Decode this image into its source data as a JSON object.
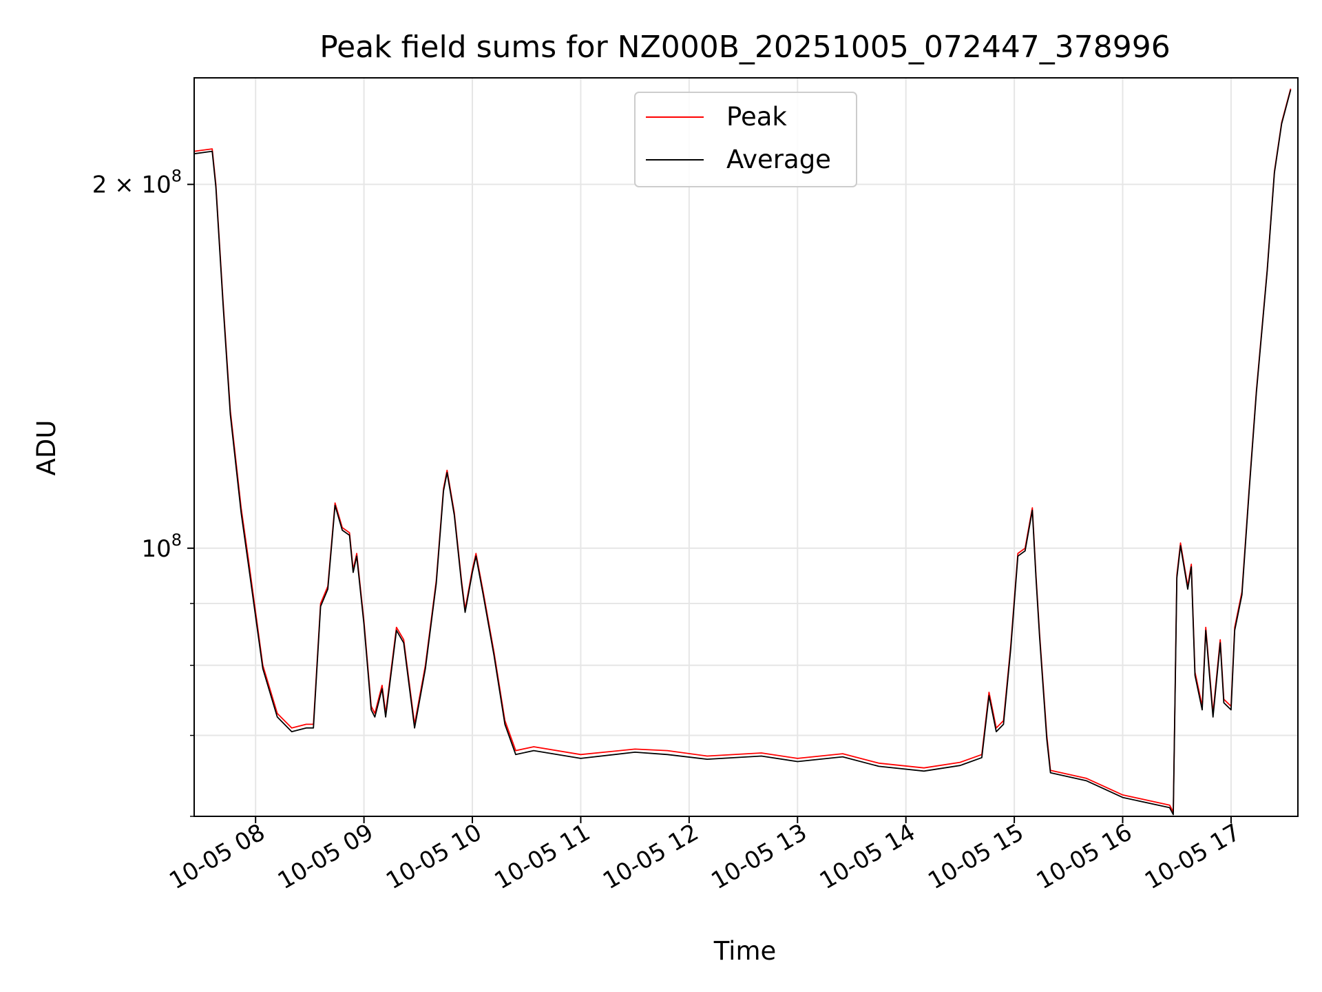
{
  "chart_data": {
    "type": "line",
    "title": "Peak field sums for NZ000B_20251005_072447_378996",
    "xlabel": "Time",
    "ylabel": "ADU",
    "y_scale": "log",
    "ylim": [
      60000000,
      245000000
    ],
    "xlim": [
      "2025-10-05 07:26",
      "2025-10-05 17:37"
    ],
    "grid": true,
    "legend_position": "top-center",
    "x_ticks": [
      {
        "t": "2025-10-05 08:00",
        "label": "10-05 08"
      },
      {
        "t": "2025-10-05 09:00",
        "label": "10-05 09"
      },
      {
        "t": "2025-10-05 10:00",
        "label": "10-05 10"
      },
      {
        "t": "2025-10-05 11:00",
        "label": "10-05 11"
      },
      {
        "t": "2025-10-05 12:00",
        "label": "10-05 12"
      },
      {
        "t": "2025-10-05 13:00",
        "label": "10-05 13"
      },
      {
        "t": "2025-10-05 14:00",
        "label": "10-05 14"
      },
      {
        "t": "2025-10-05 15:00",
        "label": "10-05 15"
      },
      {
        "t": "2025-10-05 16:00",
        "label": "10-05 16"
      },
      {
        "t": "2025-10-05 17:00",
        "label": "10-05 17"
      }
    ],
    "y_major_ticks": [
      {
        "value": 100000000,
        "base": "10",
        "exp": "8",
        "mantissa": ""
      },
      {
        "value": 200000000,
        "base": "10",
        "exp": "8",
        "mantissa": "2 × "
      }
    ],
    "y_minor_ticks": [
      60000000,
      70000000,
      80000000,
      90000000
    ],
    "series": [
      {
        "name": "Peak",
        "color": "#ff0000",
        "points": [
          [
            "2025-10-05 07:26",
            213000000
          ],
          [
            "2025-10-05 07:36",
            214000000
          ],
          [
            "2025-10-05 07:38",
            200000000
          ],
          [
            "2025-10-05 07:42",
            160000000
          ],
          [
            "2025-10-05 07:46",
            130000000
          ],
          [
            "2025-10-05 07:52",
            108000000
          ],
          [
            "2025-10-05 07:56",
            98000000
          ],
          [
            "2025-10-05 08:04",
            80000000
          ],
          [
            "2025-10-05 08:12",
            73000000
          ],
          [
            "2025-10-05 08:20",
            71000000
          ],
          [
            "2025-10-05 08:28",
            71500000
          ],
          [
            "2025-10-05 08:32",
            71500000
          ],
          [
            "2025-10-05 08:36",
            90000000
          ],
          [
            "2025-10-05 08:40",
            93000000
          ],
          [
            "2025-10-05 08:44",
            109000000
          ],
          [
            "2025-10-05 08:48",
            104000000
          ],
          [
            "2025-10-05 08:52",
            103000000
          ],
          [
            "2025-10-05 08:54",
            96000000
          ],
          [
            "2025-10-05 08:56",
            99000000
          ],
          [
            "2025-10-05 09:00",
            87000000
          ],
          [
            "2025-10-05 09:04",
            74000000
          ],
          [
            "2025-10-05 09:06",
            73000000
          ],
          [
            "2025-10-05 09:10",
            77000000
          ],
          [
            "2025-10-05 09:12",
            73000000
          ],
          [
            "2025-10-05 09:18",
            86000000
          ],
          [
            "2025-10-05 09:22",
            84000000
          ],
          [
            "2025-10-05 09:28",
            71500000
          ],
          [
            "2025-10-05 09:34",
            80000000
          ],
          [
            "2025-10-05 09:40",
            94000000
          ],
          [
            "2025-10-05 09:44",
            112000000
          ],
          [
            "2025-10-05 09:46",
            116000000
          ],
          [
            "2025-10-05 09:50",
            107000000
          ],
          [
            "2025-10-05 09:54",
            94000000
          ],
          [
            "2025-10-05 09:56",
            89000000
          ],
          [
            "2025-10-05 10:00",
            96000000
          ],
          [
            "2025-10-05 10:02",
            99000000
          ],
          [
            "2025-10-05 10:06",
            92000000
          ],
          [
            "2025-10-05 10:12",
            82000000
          ],
          [
            "2025-10-05 10:18",
            72000000
          ],
          [
            "2025-10-05 10:24",
            68000000
          ],
          [
            "2025-10-05 10:34",
            68500000
          ],
          [
            "2025-10-05 11:00",
            67500000
          ],
          [
            "2025-10-05 11:30",
            68200000
          ],
          [
            "2025-10-05 11:48",
            68000000
          ],
          [
            "2025-10-05 12:10",
            67300000
          ],
          [
            "2025-10-05 12:40",
            67700000
          ],
          [
            "2025-10-05 13:00",
            67000000
          ],
          [
            "2025-10-05 13:25",
            67600000
          ],
          [
            "2025-10-05 13:45",
            66400000
          ],
          [
            "2025-10-05 14:10",
            65800000
          ],
          [
            "2025-10-05 14:30",
            66500000
          ],
          [
            "2025-10-05 14:42",
            67500000
          ],
          [
            "2025-10-05 14:46",
            76000000
          ],
          [
            "2025-10-05 14:50",
            71000000
          ],
          [
            "2025-10-05 14:54",
            72000000
          ],
          [
            "2025-10-05 14:58",
            83000000
          ],
          [
            "2025-10-05 15:02",
            99000000
          ],
          [
            "2025-10-05 15:06",
            100000000
          ],
          [
            "2025-10-05 15:10",
            108000000
          ],
          [
            "2025-10-05 15:12",
            95000000
          ],
          [
            "2025-10-05 15:14",
            85000000
          ],
          [
            "2025-10-05 15:18",
            70000000
          ],
          [
            "2025-10-05 15:20",
            65500000
          ],
          [
            "2025-10-05 15:40",
            64500000
          ],
          [
            "2025-10-05 16:00",
            62500000
          ],
          [
            "2025-10-05 16:26",
            61300000
          ],
          [
            "2025-10-05 16:28",
            60500000
          ],
          [
            "2025-10-05 16:30",
            95000000
          ],
          [
            "2025-10-05 16:32",
            101000000
          ],
          [
            "2025-10-05 16:36",
            93000000
          ],
          [
            "2025-10-05 16:38",
            97000000
          ],
          [
            "2025-10-05 16:40",
            79000000
          ],
          [
            "2025-10-05 16:44",
            74000000
          ],
          [
            "2025-10-05 16:46",
            86000000
          ],
          [
            "2025-10-05 16:50",
            73000000
          ],
          [
            "2025-10-05 16:54",
            84000000
          ],
          [
            "2025-10-05 16:56",
            75000000
          ],
          [
            "2025-10-05 17:00",
            74000000
          ],
          [
            "2025-10-05 17:02",
            86000000
          ],
          [
            "2025-10-05 17:06",
            92000000
          ],
          [
            "2025-10-05 17:10",
            112000000
          ],
          [
            "2025-10-05 17:14",
            135000000
          ],
          [
            "2025-10-05 17:20",
            170000000
          ],
          [
            "2025-10-05 17:24",
            205000000
          ],
          [
            "2025-10-05 17:28",
            225000000
          ],
          [
            "2025-10-05 17:33",
            240000000
          ]
        ]
      },
      {
        "name": "Average",
        "color": "#000000",
        "points": [
          [
            "2025-10-05 07:26",
            212000000
          ],
          [
            "2025-10-05 07:36",
            213000000
          ],
          [
            "2025-10-05 07:38",
            199000000
          ],
          [
            "2025-10-05 07:42",
            159000000
          ],
          [
            "2025-10-05 07:46",
            129000000
          ],
          [
            "2025-10-05 07:52",
            107000000
          ],
          [
            "2025-10-05 07:56",
            97000000
          ],
          [
            "2025-10-05 08:04",
            79500000
          ],
          [
            "2025-10-05 08:12",
            72500000
          ],
          [
            "2025-10-05 08:20",
            70500000
          ],
          [
            "2025-10-05 08:28",
            71000000
          ],
          [
            "2025-10-05 08:32",
            71000000
          ],
          [
            "2025-10-05 08:36",
            89500000
          ],
          [
            "2025-10-05 08:40",
            92500000
          ],
          [
            "2025-10-05 08:44",
            108500000
          ],
          [
            "2025-10-05 08:48",
            103500000
          ],
          [
            "2025-10-05 08:52",
            102500000
          ],
          [
            "2025-10-05 08:54",
            95500000
          ],
          [
            "2025-10-05 08:56",
            98500000
          ],
          [
            "2025-10-05 09:00",
            86500000
          ],
          [
            "2025-10-05 09:04",
            73500000
          ],
          [
            "2025-10-05 09:06",
            72500000
          ],
          [
            "2025-10-05 09:10",
            76500000
          ],
          [
            "2025-10-05 09:12",
            72500000
          ],
          [
            "2025-10-05 09:18",
            85500000
          ],
          [
            "2025-10-05 09:22",
            83500000
          ],
          [
            "2025-10-05 09:28",
            71000000
          ],
          [
            "2025-10-05 09:34",
            79500000
          ],
          [
            "2025-10-05 09:40",
            93500000
          ],
          [
            "2025-10-05 09:44",
            111500000
          ],
          [
            "2025-10-05 09:46",
            115500000
          ],
          [
            "2025-10-05 09:50",
            106500000
          ],
          [
            "2025-10-05 09:54",
            93500000
          ],
          [
            "2025-10-05 09:56",
            88500000
          ],
          [
            "2025-10-05 10:00",
            95500000
          ],
          [
            "2025-10-05 10:02",
            98500000
          ],
          [
            "2025-10-05 10:06",
            91500000
          ],
          [
            "2025-10-05 10:12",
            81500000
          ],
          [
            "2025-10-05 10:18",
            71500000
          ],
          [
            "2025-10-05 10:24",
            67500000
          ],
          [
            "2025-10-05 10:34",
            68000000
          ],
          [
            "2025-10-05 11:00",
            67000000
          ],
          [
            "2025-10-05 11:30",
            67800000
          ],
          [
            "2025-10-05 11:48",
            67500000
          ],
          [
            "2025-10-05 12:10",
            66900000
          ],
          [
            "2025-10-05 12:40",
            67300000
          ],
          [
            "2025-10-05 13:00",
            66600000
          ],
          [
            "2025-10-05 13:25",
            67200000
          ],
          [
            "2025-10-05 13:45",
            66000000
          ],
          [
            "2025-10-05 14:10",
            65400000
          ],
          [
            "2025-10-05 14:30",
            66100000
          ],
          [
            "2025-10-05 14:42",
            67100000
          ],
          [
            "2025-10-05 14:46",
            75500000
          ],
          [
            "2025-10-05 14:50",
            70500000
          ],
          [
            "2025-10-05 14:54",
            71500000
          ],
          [
            "2025-10-05 14:58",
            82500000
          ],
          [
            "2025-10-05 15:02",
            98500000
          ],
          [
            "2025-10-05 15:06",
            99500000
          ],
          [
            "2025-10-05 15:10",
            107500000
          ],
          [
            "2025-10-05 15:12",
            94500000
          ],
          [
            "2025-10-05 15:14",
            84500000
          ],
          [
            "2025-10-05 15:18",
            69500000
          ],
          [
            "2025-10-05 15:20",
            65200000
          ],
          [
            "2025-10-05 15:40",
            64200000
          ],
          [
            "2025-10-05 16:00",
            62200000
          ],
          [
            "2025-10-05 16:26",
            61000000
          ],
          [
            "2025-10-05 16:28",
            60200000
          ],
          [
            "2025-10-05 16:30",
            94500000
          ],
          [
            "2025-10-05 16:32",
            100500000
          ],
          [
            "2025-10-05 16:36",
            92500000
          ],
          [
            "2025-10-05 16:38",
            96500000
          ],
          [
            "2025-10-05 16:40",
            78500000
          ],
          [
            "2025-10-05 16:44",
            73500000
          ],
          [
            "2025-10-05 16:46",
            85500000
          ],
          [
            "2025-10-05 16:50",
            72500000
          ],
          [
            "2025-10-05 16:54",
            83500000
          ],
          [
            "2025-10-05 16:56",
            74500000
          ],
          [
            "2025-10-05 17:00",
            73500000
          ],
          [
            "2025-10-05 17:02",
            85500000
          ],
          [
            "2025-10-05 17:06",
            91500000
          ],
          [
            "2025-10-05 17:10",
            111500000
          ],
          [
            "2025-10-05 17:14",
            134500000
          ],
          [
            "2025-10-05 17:20",
            169500000
          ],
          [
            "2025-10-05 17:24",
            204500000
          ],
          [
            "2025-10-05 17:28",
            224500000
          ],
          [
            "2025-10-05 17:33",
            239500000
          ]
        ]
      }
    ]
  }
}
